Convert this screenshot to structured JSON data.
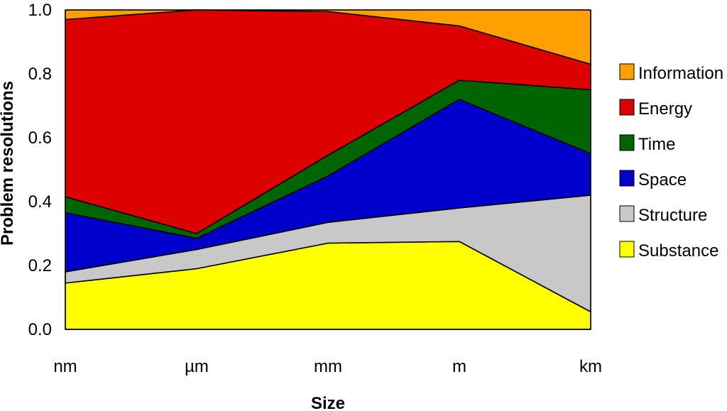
{
  "chart_data": {
    "type": "area",
    "stacked": true,
    "categories": [
      "nm",
      "µm",
      "mm",
      "m",
      "km"
    ],
    "xlabel": "Size",
    "ylabel": "Problem resolutions",
    "ylim": [
      0,
      1
    ],
    "yticks": [
      "0.0",
      "0.2",
      "0.4",
      "0.6",
      "0.8",
      "1.0"
    ],
    "grid": false,
    "legend_position": "right",
    "series": [
      {
        "name": "Substance",
        "color": "#ffff00",
        "values": [
          0.145,
          0.19,
          0.27,
          0.275,
          0.055
        ]
      },
      {
        "name": "Structure",
        "color": "#c8c8c8",
        "values": [
          0.035,
          0.06,
          0.065,
          0.105,
          0.365
        ]
      },
      {
        "name": "Space",
        "color": "#0000cc",
        "values": [
          0.185,
          0.035,
          0.145,
          0.34,
          0.13
        ]
      },
      {
        "name": "Time",
        "color": "#006400",
        "values": [
          0.05,
          0.015,
          0.065,
          0.06,
          0.2
        ]
      },
      {
        "name": "Energy",
        "color": "#dd0000",
        "values": [
          0.555,
          0.7,
          0.45,
          0.17,
          0.08
        ]
      },
      {
        "name": "Information",
        "color": "#ffa000",
        "values": [
          0.03,
          0.0,
          0.005,
          0.05,
          0.17
        ]
      }
    ]
  }
}
